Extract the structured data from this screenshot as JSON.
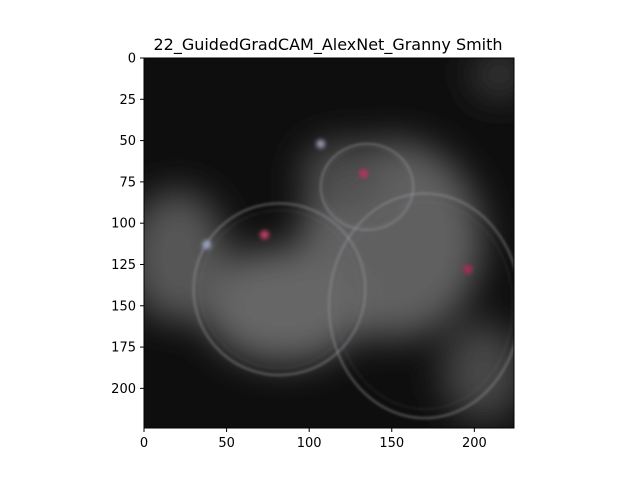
{
  "chart_data": {
    "type": "heatmap",
    "title": "22_GuidedGradCAM_AlexNet_Granny Smith",
    "xlabel": "",
    "ylabel": "",
    "xlim": [
      0,
      224
    ],
    "ylim": [
      224,
      0
    ],
    "x_ticks": [
      0,
      50,
      100,
      150,
      200
    ],
    "y_ticks": [
      0,
      25,
      50,
      75,
      100,
      125,
      150,
      175,
      200
    ],
    "grid": false,
    "colormap": "grayscale",
    "background_color": "#0e0e0e",
    "bright_regions": [
      {
        "cx": 150,
        "cy": 110,
        "rx": 55,
        "ry": 60,
        "intensity": 0.38
      },
      {
        "cx": 85,
        "cy": 150,
        "rx": 50,
        "ry": 35,
        "intensity": 0.4
      },
      {
        "cx": 20,
        "cy": 120,
        "rx": 30,
        "ry": 40,
        "intensity": 0.34
      },
      {
        "cx": 205,
        "cy": 190,
        "rx": 25,
        "ry": 30,
        "intensity": 0.28
      },
      {
        "cx": 215,
        "cy": 10,
        "rx": 18,
        "ry": 15,
        "intensity": 0.22
      },
      {
        "cx": 120,
        "cy": 70,
        "rx": 25,
        "ry": 20,
        "intensity": 0.3
      }
    ],
    "outlines": [
      {
        "cx": 82,
        "cy": 140,
        "rx": 52,
        "ry": 52
      },
      {
        "cx": 170,
        "cy": 150,
        "rx": 58,
        "ry": 68
      },
      {
        "cx": 135,
        "cy": 78,
        "rx": 28,
        "ry": 26
      }
    ],
    "hot_spots": [
      {
        "x": 73,
        "y": 107,
        "color": "#d0406a"
      },
      {
        "x": 133,
        "y": 70,
        "color": "#c03060"
      },
      {
        "x": 196,
        "y": 128,
        "color": "#b02a58"
      },
      {
        "x": 38,
        "y": 113,
        "color": "#a0a8c8"
      },
      {
        "x": 107,
        "y": 52,
        "color": "#9aa0b8"
      }
    ]
  }
}
